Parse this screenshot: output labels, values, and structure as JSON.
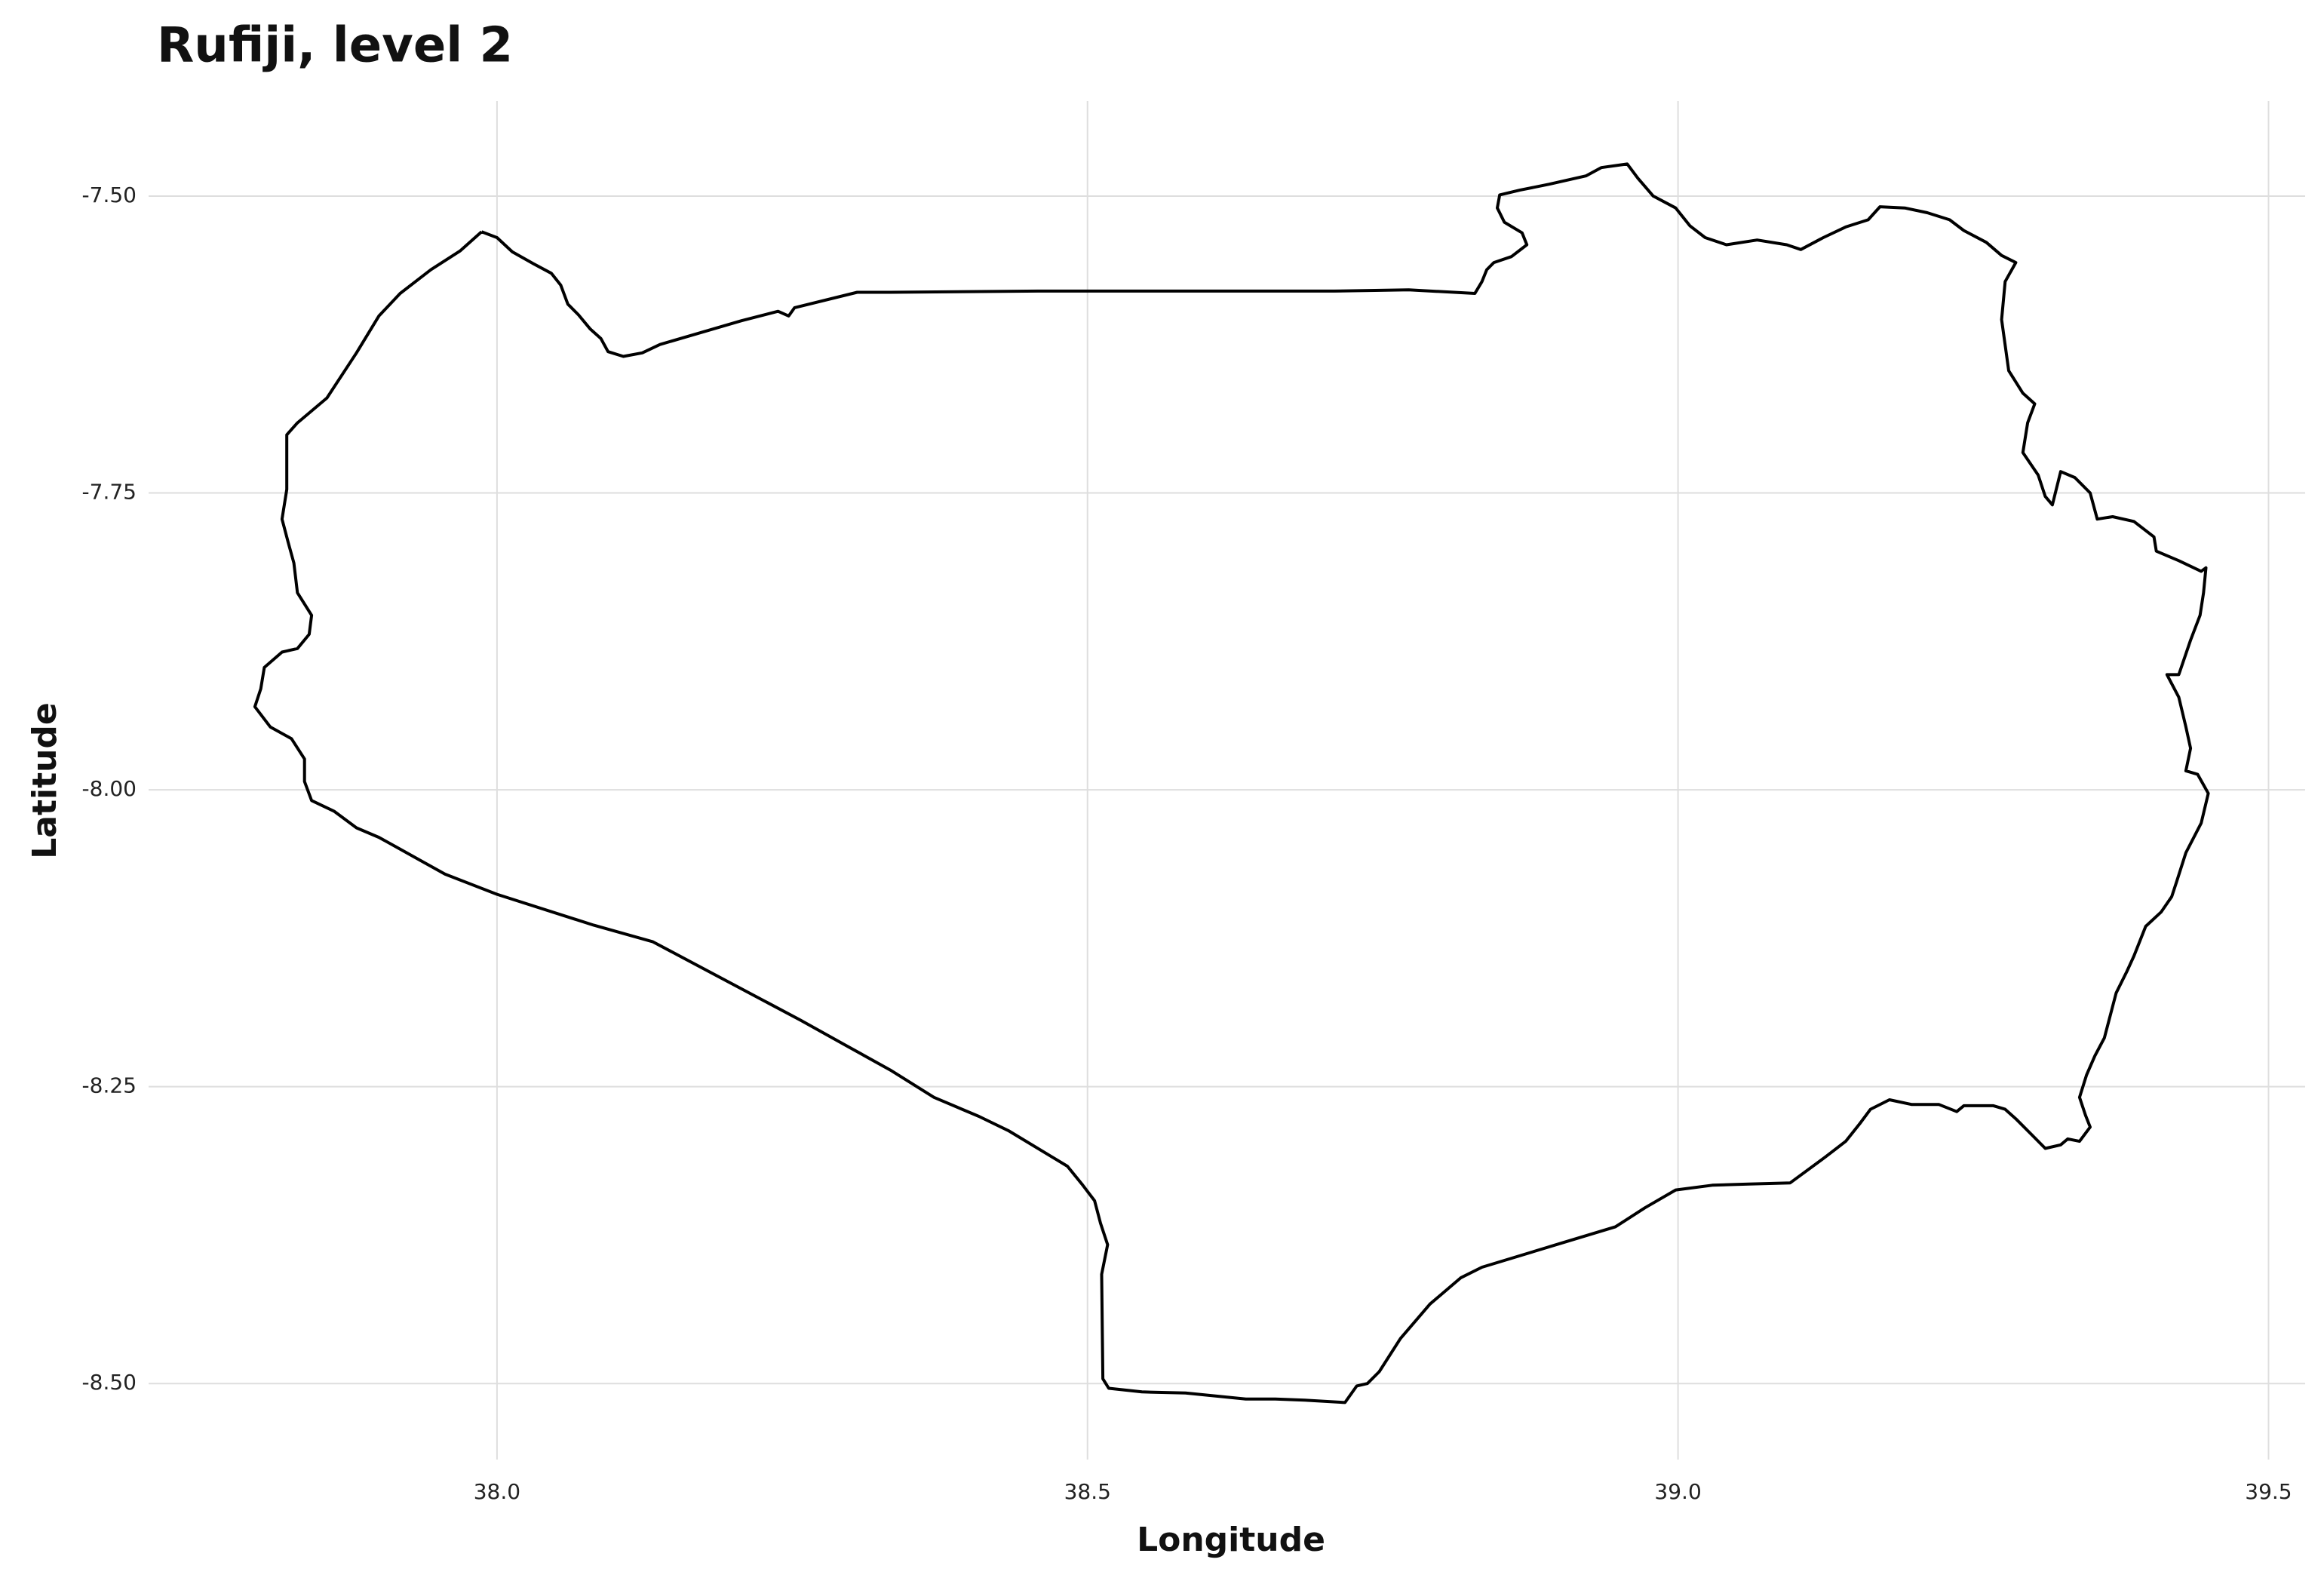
{
  "chart_data": {
    "type": "map",
    "title": "Rufiji, level 2",
    "x_label": "Longitude",
    "y_label": "Latitude",
    "color": "#000000",
    "grid": true,
    "xlim": [
      37.705,
      39.531
    ],
    "ylim": [
      -8.564,
      -7.42
    ],
    "xticks": [
      {
        "value": 38,
        "label": "38.0"
      },
      {
        "value": 38.5,
        "label": "38.5"
      },
      {
        "value": 39,
        "label": "39.0"
      },
      {
        "value": 39.5,
        "label": "39.5"
      }
    ],
    "yticks": [
      {
        "value": -7.5,
        "label": "-7.50"
      },
      {
        "value": -7.75,
        "label": "-7.75"
      },
      {
        "value": -8,
        "label": "-8.00"
      },
      {
        "value": -8.25,
        "label": "-8.25"
      },
      {
        "value": -8.5,
        "label": "-8.50"
      }
    ],
    "x": [
      37.987,
      38.0,
      38.013,
      38.031,
      38.046,
      38.054,
      38.06,
      38.069,
      38.079,
      38.088,
      38.094,
      38.107,
      38.123,
      38.138,
      38.169,
      38.207,
      38.238,
      38.247,
      38.252,
      38.305,
      38.333,
      38.458,
      38.583,
      38.709,
      38.772,
      38.828,
      38.834,
      38.838,
      38.844,
      38.859,
      38.872,
      38.868,
      38.853,
      38.847,
      38.849,
      38.866,
      38.891,
      38.922,
      38.935,
      38.957,
      38.966,
      38.979,
      38.998,
      39.01,
      39.023,
      39.041,
      39.067,
      39.092,
      39.104,
      39.123,
      39.142,
      39.161,
      39.171,
      39.192,
      39.211,
      39.23,
      39.242,
      39.261,
      39.274,
      39.286,
      39.277,
      39.274,
      39.28,
      39.292,
      39.302,
      39.296,
      39.292,
      39.305,
      39.311,
      39.317,
      39.324,
      39.336,
      39.349,
      39.355,
      39.368,
      39.386,
      39.403,
      39.405,
      39.424,
      39.443,
      39.447,
      39.445,
      39.442,
      39.434,
      39.424,
      39.414,
      39.424,
      39.43,
      39.434,
      39.43,
      39.44,
      39.449,
      39.443,
      39.43,
      39.422,
      39.418,
      39.409,
      39.396,
      39.386,
      39.38,
      39.371,
      39.361,
      39.353,
      39.346,
      39.34,
      39.345,
      39.349,
      39.34,
      39.33,
      39.324,
      39.311,
      39.299,
      39.286,
      39.277,
      39.267,
      39.242,
      39.236,
      39.221,
      39.198,
      39.179,
      39.163,
      39.154,
      39.142,
      39.125,
      39.095,
      39.06,
      39.029,
      38.998,
      38.972,
      38.947,
      38.897,
      38.834,
      38.816,
      38.79,
      38.765,
      38.747,
      38.737,
      38.728,
      38.718,
      38.684,
      38.659,
      38.634,
      38.583,
      38.546,
      38.518,
      38.513,
      38.512,
      38.517,
      38.511,
      38.506,
      38.496,
      38.483,
      38.433,
      38.408,
      38.37,
      38.333,
      38.295,
      38.257,
      38.132,
      38.082,
      38.0,
      37.956,
      37.918,
      37.9,
      37.881,
      37.862,
      37.843,
      37.837,
      37.837,
      37.826,
      37.808,
      37.795,
      37.8,
      37.803,
      37.818,
      37.831,
      37.841,
      37.843,
      37.831,
      37.828,
      37.823,
      37.818,
      37.822,
      37.822,
      37.831,
      37.856,
      37.881,
      37.9,
      37.918,
      37.944,
      37.969,
      37.987
    ],
    "values": [
      -7.53,
      -7.535,
      -7.547,
      -7.557,
      -7.565,
      -7.575,
      -7.591,
      -7.6,
      -7.612,
      -7.62,
      -7.631,
      -7.635,
      -7.632,
      -7.625,
      -7.616,
      -7.605,
      -7.597,
      -7.601,
      -7.594,
      -7.581,
      -7.581,
      -7.58,
      -7.58,
      -7.58,
      -7.579,
      -7.582,
      -7.572,
      -7.562,
      -7.556,
      -7.551,
      -7.541,
      -7.531,
      -7.522,
      -7.51,
      -7.499,
      -7.495,
      -7.49,
      -7.483,
      -7.476,
      -7.473,
      -7.485,
      -7.5,
      -7.51,
      -7.525,
      -7.535,
      -7.541,
      -7.537,
      -7.541,
      -7.545,
      -7.535,
      -7.526,
      -7.52,
      -7.509,
      -7.51,
      -7.514,
      -7.52,
      -7.529,
      -7.539,
      -7.55,
      -7.556,
      -7.572,
      -7.604,
      -7.647,
      -7.666,
      -7.675,
      -7.691,
      -7.716,
      -7.735,
      -7.753,
      -7.76,
      -7.732,
      -7.737,
      -7.75,
      -7.772,
      -7.77,
      -7.774,
      -7.787,
      -7.799,
      -7.807,
      -7.816,
      -7.813,
      -7.834,
      -7.853,
      -7.874,
      -7.903,
      -7.903,
      -7.922,
      -7.947,
      -7.965,
      -7.984,
      -7.987,
      -8.003,
      -8.028,
      -8.053,
      -8.078,
      -8.09,
      -8.103,
      -8.115,
      -8.14,
      -8.153,
      -8.171,
      -8.209,
      -8.224,
      -8.24,
      -8.259,
      -8.274,
      -8.284,
      -8.296,
      -8.294,
      -8.299,
      -8.302,
      -8.29,
      -8.277,
      -8.269,
      -8.266,
      -8.266,
      -8.271,
      -8.265,
      -8.265,
      -8.261,
      -8.269,
      -8.281,
      -8.296,
      -8.309,
      -8.331,
      -8.332,
      -8.333,
      -8.337,
      -8.352,
      -8.368,
      -8.383,
      -8.402,
      -8.411,
      -8.433,
      -8.462,
      -8.49,
      -8.5,
      -8.502,
      -8.516,
      -8.514,
      -8.513,
      -8.513,
      -8.508,
      -8.507,
      -8.504,
      -8.496,
      -8.408,
      -8.383,
      -8.365,
      -8.346,
      -8.333,
      -8.317,
      -8.287,
      -8.275,
      -8.259,
      -8.236,
      -8.215,
      -8.194,
      -8.128,
      -8.114,
      -8.088,
      -8.071,
      -8.05,
      -8.04,
      -8.032,
      -8.018,
      -8.009,
      -7.993,
      -7.974,
      -7.957,
      -7.947,
      -7.93,
      -7.915,
      -7.897,
      -7.884,
      -7.881,
      -7.869,
      -7.853,
      -7.834,
      -7.809,
      -7.791,
      -7.772,
      -7.747,
      -7.701,
      -7.691,
      -7.67,
      -7.632,
      -7.601,
      -7.582,
      -7.562,
      -7.546,
      -7.53
    ]
  }
}
